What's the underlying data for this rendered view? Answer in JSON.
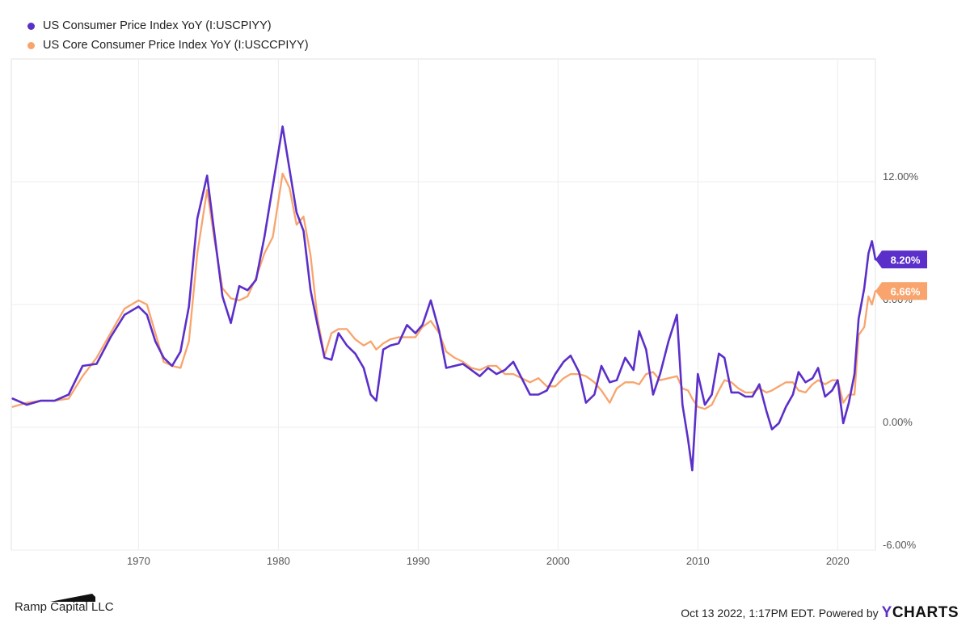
{
  "legend": [
    {
      "label": "US Consumer Price Index YoY (I:USCPIYY)",
      "color": "#5b2fc9"
    },
    {
      "label": "US Core Consumer Price Index YoY (I:USCCPIYY)",
      "color": "#f8a46c"
    }
  ],
  "footer": {
    "left_text": "Ramp Capital LLC",
    "date_text": "Oct 13 2022, 1:17PM EDT.",
    "powered_text": "Powered by",
    "brand_y": "Y",
    "brand_rest": "CHARTS"
  },
  "chart_data": {
    "type": "line",
    "xlim": [
      1960.9,
      2022.7
    ],
    "ylim": [
      -6.0,
      18.0
    ],
    "x_ticks": [
      {
        "value": 1970,
        "label": "1970"
      },
      {
        "value": 1980,
        "label": "1980"
      },
      {
        "value": 1990,
        "label": "1990"
      },
      {
        "value": 2000,
        "label": "2000"
      },
      {
        "value": 2010,
        "label": "2010"
      },
      {
        "value": 2020,
        "label": "2020"
      }
    ],
    "y_ticks": [
      {
        "value": 12,
        "label": "12.00%"
      },
      {
        "value": 6,
        "label": "6.00%"
      },
      {
        "value": 0,
        "label": "0.00%"
      },
      {
        "value": -6,
        "label": "-6.00%"
      }
    ],
    "grid": true,
    "series": [
      {
        "name": "US Consumer Price Index YoY (I:USCPIYY)",
        "color": "#5b2fc9",
        "last_label": "8.20%",
        "points": [
          [
            1961.0,
            1.4
          ],
          [
            1962.0,
            1.1
          ],
          [
            1963.0,
            1.3
          ],
          [
            1964.0,
            1.3
          ],
          [
            1965.0,
            1.6
          ],
          [
            1966.0,
            3.0
          ],
          [
            1967.0,
            3.1
          ],
          [
            1968.0,
            4.4
          ],
          [
            1969.0,
            5.5
          ],
          [
            1970.0,
            5.9
          ],
          [
            1970.6,
            5.5
          ],
          [
            1971.2,
            4.2
          ],
          [
            1971.8,
            3.4
          ],
          [
            1972.4,
            3.0
          ],
          [
            1973.0,
            3.7
          ],
          [
            1973.6,
            5.9
          ],
          [
            1974.2,
            10.2
          ],
          [
            1974.9,
            12.3
          ],
          [
            1975.4,
            9.6
          ],
          [
            1976.0,
            6.4
          ],
          [
            1976.6,
            5.1
          ],
          [
            1977.2,
            6.9
          ],
          [
            1977.8,
            6.7
          ],
          [
            1978.4,
            7.2
          ],
          [
            1979.0,
            9.3
          ],
          [
            1979.6,
            11.8
          ],
          [
            1980.3,
            14.7
          ],
          [
            1980.8,
            12.6
          ],
          [
            1981.3,
            10.5
          ],
          [
            1981.8,
            9.6
          ],
          [
            1982.3,
            6.7
          ],
          [
            1982.8,
            5.0
          ],
          [
            1983.3,
            3.4
          ],
          [
            1983.8,
            3.3
          ],
          [
            1984.3,
            4.6
          ],
          [
            1984.9,
            4.0
          ],
          [
            1985.5,
            3.6
          ],
          [
            1986.1,
            2.9
          ],
          [
            1986.6,
            1.6
          ],
          [
            1987.0,
            1.3
          ],
          [
            1987.5,
            3.8
          ],
          [
            1988.0,
            4.0
          ],
          [
            1988.6,
            4.1
          ],
          [
            1989.2,
            5.0
          ],
          [
            1989.8,
            4.6
          ],
          [
            1990.3,
            5.0
          ],
          [
            1990.9,
            6.2
          ],
          [
            1991.5,
            4.7
          ],
          [
            1992.0,
            2.9
          ],
          [
            1992.6,
            3.0
          ],
          [
            1993.2,
            3.1
          ],
          [
            1993.8,
            2.8
          ],
          [
            1994.4,
            2.5
          ],
          [
            1995.0,
            2.9
          ],
          [
            1995.6,
            2.6
          ],
          [
            1996.2,
            2.8
          ],
          [
            1996.8,
            3.2
          ],
          [
            1997.4,
            2.4
          ],
          [
            1998.0,
            1.6
          ],
          [
            1998.6,
            1.6
          ],
          [
            1999.2,
            1.8
          ],
          [
            1999.8,
            2.6
          ],
          [
            2000.4,
            3.2
          ],
          [
            2000.9,
            3.5
          ],
          [
            2001.5,
            2.7
          ],
          [
            2002.0,
            1.2
          ],
          [
            2002.6,
            1.6
          ],
          [
            2003.1,
            3.0
          ],
          [
            2003.7,
            2.2
          ],
          [
            2004.2,
            2.3
          ],
          [
            2004.8,
            3.4
          ],
          [
            2005.4,
            2.8
          ],
          [
            2005.8,
            4.7
          ],
          [
            2006.3,
            3.8
          ],
          [
            2006.8,
            1.6
          ],
          [
            2007.3,
            2.6
          ],
          [
            2007.9,
            4.2
          ],
          [
            2008.5,
            5.5
          ],
          [
            2008.9,
            1.1
          ],
          [
            2009.3,
            -0.6
          ],
          [
            2009.6,
            -2.1
          ],
          [
            2010.0,
            2.6
          ],
          [
            2010.5,
            1.1
          ],
          [
            2011.0,
            1.6
          ],
          [
            2011.5,
            3.6
          ],
          [
            2011.9,
            3.4
          ],
          [
            2012.4,
            1.7
          ],
          [
            2012.9,
            1.7
          ],
          [
            2013.4,
            1.5
          ],
          [
            2013.9,
            1.5
          ],
          [
            2014.4,
            2.1
          ],
          [
            2014.9,
            0.8
          ],
          [
            2015.3,
            -0.1
          ],
          [
            2015.8,
            0.2
          ],
          [
            2016.3,
            1.0
          ],
          [
            2016.8,
            1.6
          ],
          [
            2017.2,
            2.7
          ],
          [
            2017.7,
            2.2
          ],
          [
            2018.2,
            2.4
          ],
          [
            2018.6,
            2.9
          ],
          [
            2019.1,
            1.5
          ],
          [
            2019.6,
            1.8
          ],
          [
            2020.0,
            2.3
          ],
          [
            2020.4,
            0.2
          ],
          [
            2020.8,
            1.2
          ],
          [
            2021.2,
            2.6
          ],
          [
            2021.5,
            5.3
          ],
          [
            2021.9,
            6.8
          ],
          [
            2022.2,
            8.5
          ],
          [
            2022.45,
            9.1
          ],
          [
            2022.7,
            8.2
          ]
        ]
      },
      {
        "name": "US Core Consumer Price Index YoY (I:USCCPIYY)",
        "color": "#f8a46c",
        "last_label": "6.66%",
        "points": [
          [
            1961.0,
            1.0
          ],
          [
            1962.0,
            1.2
          ],
          [
            1963.0,
            1.3
          ],
          [
            1964.0,
            1.3
          ],
          [
            1965.0,
            1.4
          ],
          [
            1966.0,
            2.5
          ],
          [
            1967.0,
            3.4
          ],
          [
            1968.0,
            4.6
          ],
          [
            1969.0,
            5.8
          ],
          [
            1970.0,
            6.2
          ],
          [
            1970.6,
            6.0
          ],
          [
            1971.2,
            4.6
          ],
          [
            1971.8,
            3.2
          ],
          [
            1972.4,
            3.0
          ],
          [
            1973.0,
            2.9
          ],
          [
            1973.6,
            4.2
          ],
          [
            1974.2,
            8.5
          ],
          [
            1974.9,
            11.6
          ],
          [
            1975.4,
            9.3
          ],
          [
            1976.0,
            6.8
          ],
          [
            1976.6,
            6.3
          ],
          [
            1977.2,
            6.2
          ],
          [
            1977.8,
            6.4
          ],
          [
            1978.4,
            7.3
          ],
          [
            1979.0,
            8.5
          ],
          [
            1979.6,
            9.3
          ],
          [
            1980.3,
            12.4
          ],
          [
            1980.8,
            11.7
          ],
          [
            1981.3,
            9.9
          ],
          [
            1981.8,
            10.3
          ],
          [
            1982.3,
            8.4
          ],
          [
            1982.8,
            5.3
          ],
          [
            1983.3,
            3.5
          ],
          [
            1983.8,
            4.6
          ],
          [
            1984.3,
            4.8
          ],
          [
            1984.9,
            4.8
          ],
          [
            1985.5,
            4.3
          ],
          [
            1986.1,
            4.0
          ],
          [
            1986.6,
            4.2
          ],
          [
            1987.0,
            3.8
          ],
          [
            1987.5,
            4.1
          ],
          [
            1988.0,
            4.3
          ],
          [
            1988.6,
            4.4
          ],
          [
            1989.2,
            4.4
          ],
          [
            1989.8,
            4.4
          ],
          [
            1990.3,
            4.9
          ],
          [
            1990.9,
            5.2
          ],
          [
            1991.5,
            4.6
          ],
          [
            1992.0,
            3.7
          ],
          [
            1992.6,
            3.4
          ],
          [
            1993.2,
            3.2
          ],
          [
            1993.8,
            2.9
          ],
          [
            1994.4,
            2.8
          ],
          [
            1995.0,
            3.0
          ],
          [
            1995.6,
            3.0
          ],
          [
            1996.2,
            2.6
          ],
          [
            1996.8,
            2.6
          ],
          [
            1997.4,
            2.4
          ],
          [
            1998.0,
            2.2
          ],
          [
            1998.6,
            2.4
          ],
          [
            1999.2,
            2.0
          ],
          [
            1999.8,
            2.0
          ],
          [
            2000.4,
            2.4
          ],
          [
            2000.9,
            2.6
          ],
          [
            2001.5,
            2.6
          ],
          [
            2002.0,
            2.5
          ],
          [
            2002.6,
            2.2
          ],
          [
            2003.1,
            1.8
          ],
          [
            2003.7,
            1.2
          ],
          [
            2004.2,
            1.9
          ],
          [
            2004.8,
            2.2
          ],
          [
            2005.4,
            2.2
          ],
          [
            2005.8,
            2.1
          ],
          [
            2006.3,
            2.6
          ],
          [
            2006.8,
            2.7
          ],
          [
            2007.3,
            2.3
          ],
          [
            2007.9,
            2.4
          ],
          [
            2008.5,
            2.5
          ],
          [
            2008.9,
            1.9
          ],
          [
            2009.3,
            1.8
          ],
          [
            2009.6,
            1.4
          ],
          [
            2010.0,
            1.0
          ],
          [
            2010.5,
            0.9
          ],
          [
            2011.0,
            1.1
          ],
          [
            2011.5,
            1.8
          ],
          [
            2011.9,
            2.3
          ],
          [
            2012.4,
            2.2
          ],
          [
            2012.9,
            1.9
          ],
          [
            2013.4,
            1.7
          ],
          [
            2013.9,
            1.7
          ],
          [
            2014.4,
            1.9
          ],
          [
            2014.9,
            1.7
          ],
          [
            2015.3,
            1.8
          ],
          [
            2015.8,
            2.0
          ],
          [
            2016.3,
            2.2
          ],
          [
            2016.8,
            2.2
          ],
          [
            2017.2,
            1.8
          ],
          [
            2017.7,
            1.7
          ],
          [
            2018.2,
            2.1
          ],
          [
            2018.6,
            2.3
          ],
          [
            2019.1,
            2.1
          ],
          [
            2019.6,
            2.3
          ],
          [
            2020.0,
            2.3
          ],
          [
            2020.4,
            1.2
          ],
          [
            2020.8,
            1.6
          ],
          [
            2021.2,
            1.6
          ],
          [
            2021.5,
            4.5
          ],
          [
            2021.9,
            4.9
          ],
          [
            2022.2,
            6.4
          ],
          [
            2022.45,
            6.0
          ],
          [
            2022.7,
            6.66
          ]
        ]
      }
    ]
  }
}
